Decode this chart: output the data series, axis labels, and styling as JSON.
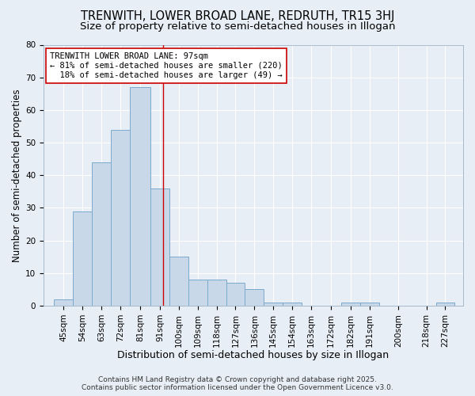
{
  "title1": "TRENWITH, LOWER BROAD LANE, REDRUTH, TR15 3HJ",
  "title2": "Size of property relative to semi-detached houses in Illogan",
  "xlabel": "Distribution of semi-detached houses by size in Illogan",
  "ylabel": "Number of semi-detached properties",
  "bin_labels": [
    "45sqm",
    "54sqm",
    "63sqm",
    "72sqm",
    "81sqm",
    "91sqm",
    "100sqm",
    "109sqm",
    "118sqm",
    "127sqm",
    "136sqm",
    "145sqm",
    "154sqm",
    "163sqm",
    "172sqm",
    "182sqm",
    "191sqm",
    "200sqm",
    "218sqm",
    "227sqm"
  ],
  "bin_lefts": [
    45,
    54,
    63,
    72,
    81,
    91,
    100,
    109,
    118,
    127,
    136,
    145,
    154,
    163,
    172,
    182,
    191,
    200,
    218,
    227
  ],
  "bin_widths": [
    9,
    9,
    9,
    9,
    10,
    9,
    9,
    9,
    9,
    9,
    9,
    9,
    9,
    9,
    10,
    9,
    9,
    18,
    9,
    9
  ],
  "values": [
    2,
    29,
    44,
    54,
    67,
    36,
    15,
    8,
    8,
    7,
    5,
    1,
    1,
    0,
    0,
    1,
    1,
    0,
    0,
    1
  ],
  "bar_color": "#c8d8e8",
  "bar_edge_color": "#7aaacc",
  "bar_edge_width": 0.7,
  "vline_x": 97,
  "vline_color": "#cc0000",
  "annotation_text": "TRENWITH LOWER BROAD LANE: 97sqm\n← 81% of semi-detached houses are smaller (220)\n  18% of semi-detached houses are larger (49) →",
  "annotation_box_color": "#ffffff",
  "annotation_box_edge": "#cc0000",
  "ylim": [
    0,
    80
  ],
  "yticks": [
    0,
    10,
    20,
    30,
    40,
    50,
    60,
    70,
    80
  ],
  "background_color": "#e8eef5",
  "footer_line1": "Contains HM Land Registry data © Crown copyright and database right 2025.",
  "footer_line2": "Contains public sector information licensed under the Open Government Licence v3.0.",
  "title1_fontsize": 10.5,
  "title2_fontsize": 9.5,
  "xlabel_fontsize": 9,
  "ylabel_fontsize": 8.5,
  "tick_fontsize": 7.5,
  "annotation_fontsize": 7.5,
  "footer_fontsize": 6.5
}
